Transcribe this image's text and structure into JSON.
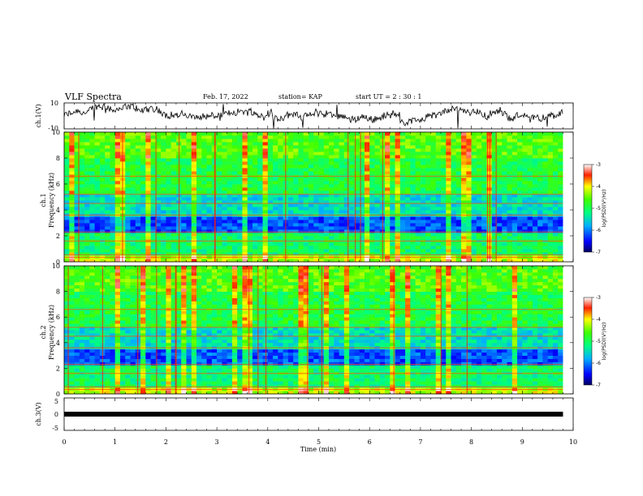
{
  "header": {
    "title": "VLF Spectra",
    "date": "Feb. 17, 2022",
    "station": "station= KAP",
    "start_ut": "start  UT =  2 : 30 : 1"
  },
  "chart_data": [
    {
      "type": "line",
      "panel": "ch1-waveform",
      "ylabel": "ch.1(V)",
      "ylim": [
        -10,
        10
      ],
      "yticks": [
        "10",
        "-10"
      ],
      "x_range_min": [
        0,
        9.8
      ],
      "note_series": "noisy waveform around 0 V"
    },
    {
      "type": "heatmap",
      "panel": "ch1-spectrogram",
      "ylabel": [
        "ch.1",
        "Frequency (kHz)"
      ],
      "ylim": [
        0,
        10
      ],
      "yticks": [
        "0",
        "2",
        "4",
        "6",
        "8",
        "10"
      ],
      "xlim": [
        0,
        10
      ],
      "colorbar": {
        "label": "log(PSD)(V²/Hz)",
        "range": [
          -7,
          -3
        ],
        "ticks": [
          "-3",
          "-4",
          "-5",
          "-6",
          "-7"
        ]
      }
    },
    {
      "type": "heatmap",
      "panel": "ch2-spectrogram",
      "ylabel": [
        "ch.2",
        "Frequency (kHz)"
      ],
      "ylim": [
        0,
        10
      ],
      "yticks": [
        "0",
        "2",
        "4",
        "6",
        "8",
        "10"
      ],
      "xlim": [
        0,
        10
      ],
      "colorbar": {
        "label": "log(PSD)(V²/Hz)",
        "range": [
          -7,
          -3
        ],
        "ticks": [
          "-3",
          "-4",
          "-5",
          "-6",
          "-7"
        ]
      }
    },
    {
      "type": "line",
      "panel": "ch3-waveform",
      "ylabel": "ch.3(V)",
      "ylim": [
        -5,
        5
      ],
      "yticks": [
        "5",
        "0",
        "-5"
      ],
      "series": [
        {
          "x": [
            0,
            9.8
          ],
          "y": [
            0,
            0
          ]
        }
      ]
    }
  ],
  "xaxis": {
    "label": "Time  (min)",
    "ticks": [
      "0",
      "1",
      "2",
      "3",
      "4",
      "5",
      "6",
      "7",
      "8",
      "9",
      "10"
    ],
    "range": [
      0,
      10
    ]
  },
  "colors": {
    "red": "#e00000",
    "yellow": "#f0f000",
    "green": "#00e060",
    "cyan": "#00c8f0",
    "blue": "#0010d0"
  }
}
